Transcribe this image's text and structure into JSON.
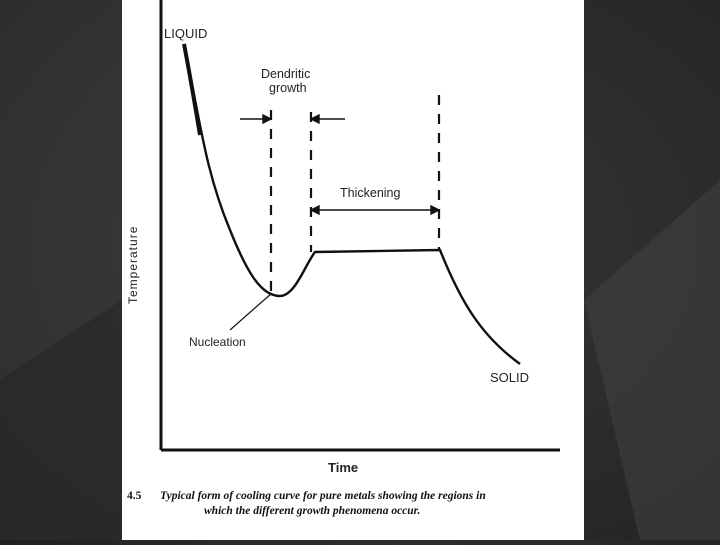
{
  "diagram": {
    "labels": {
      "liquid": "LIQUID",
      "dendritic_line1": "Dendritic",
      "dendritic_line2": "growth",
      "thickening": "Thickening",
      "nucleation": "Nucleation",
      "solid": "SOLID",
      "y_axis": "Temperature",
      "x_axis": "Time"
    }
  },
  "caption": {
    "number": "4.5",
    "line1": "Typical form of cooling curve for pure metals showing the regions in",
    "line2": "which the different growth phenomena occur."
  },
  "colors": {
    "background": "#2e2e2e",
    "panel": "#ffffff",
    "ink": "#111111"
  }
}
